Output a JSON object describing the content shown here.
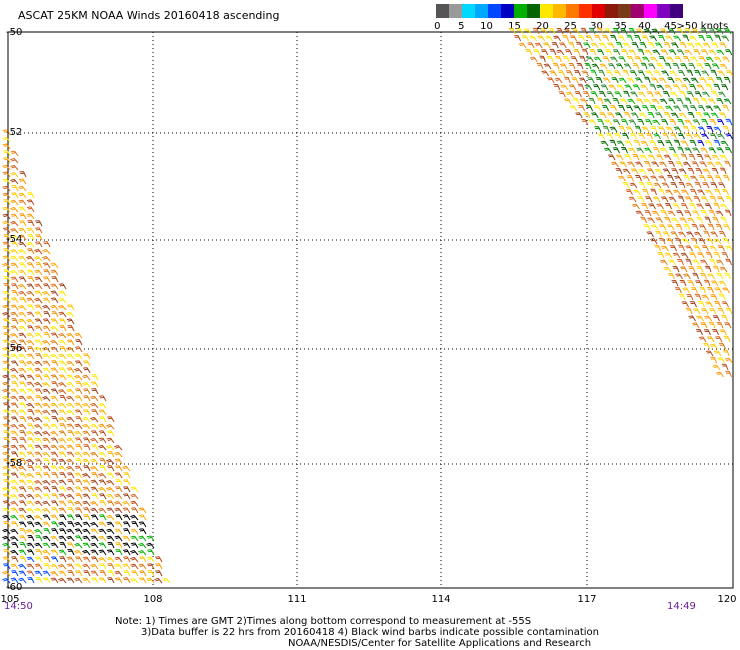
{
  "title": "ASCAT 25KM NOAA Winds 20160418 ascending",
  "legend": {
    "colors": [
      "#555555",
      "#9a9a9a",
      "#00d8ff",
      "#00a8ff",
      "#0048ff",
      "#0000c0",
      "#00b000",
      "#006400",
      "#ffe800",
      "#ffb800",
      "#ff7800",
      "#ff3000",
      "#e00000",
      "#8b1a0a",
      "#7a3a1a",
      "#a00070",
      "#ff00ff",
      "#8000c0",
      "#400080"
    ],
    "labels": [
      "0",
      "5",
      "10",
      "15",
      "20",
      "25",
      "30",
      "35",
      "40",
      "45",
      ">50 knots"
    ]
  },
  "lat_labels": [
    "-50",
    "-52",
    "-54",
    "-56",
    "-58",
    "-60"
  ],
  "lon_labels": [
    "105",
    "108",
    "111",
    "114",
    "117",
    "120"
  ],
  "time_left": "14:50",
  "time_right": "14:49",
  "notes": [
    "Note: 1) Times are GMT 2)Times along bottom correspond to measurement at -55S",
    "3)Data buffer is 22 hrs from 20160418 4) Black wind barbs indicate possible contamination",
    "NOAA/NESDIS/Center for Satellite Applications and Research"
  ]
}
